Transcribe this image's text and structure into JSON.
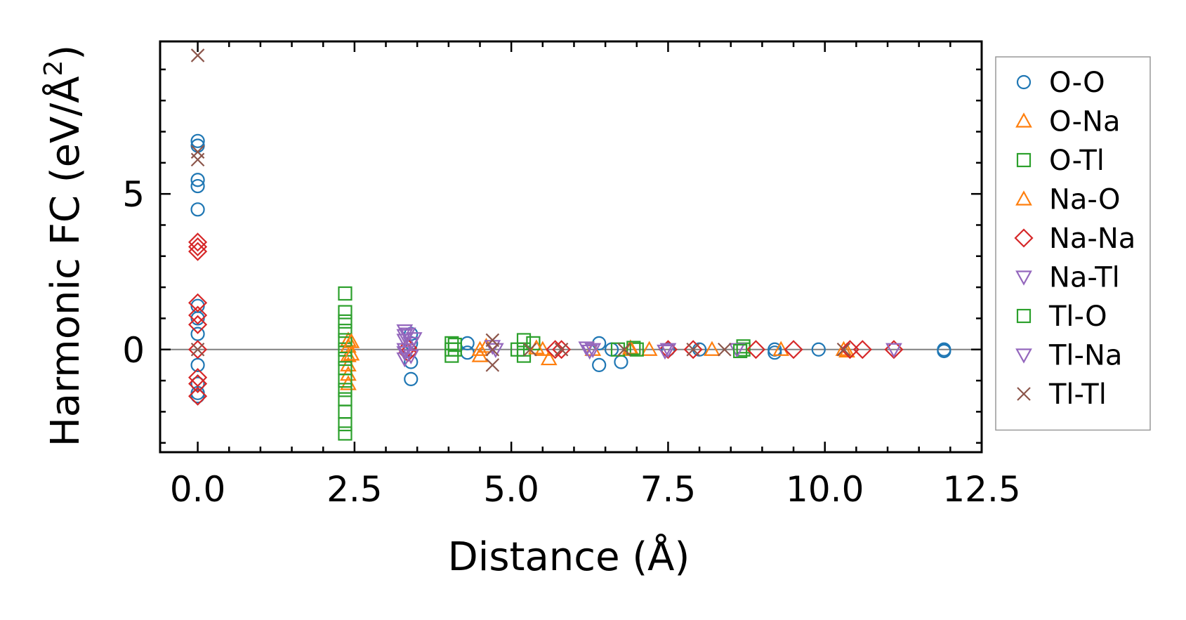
{
  "chart_data": {
    "type": "scatter",
    "xlabel": "Distance (Å)",
    "ylabel": "Harmonic FC (eV/Å",
    "ylabel_sup": "2",
    "ylabel_close": ")",
    "xlim": [
      -0.6,
      12.5
    ],
    "ylim": [
      -3.3,
      9.9
    ],
    "xticks": [
      0.0,
      2.5,
      5.0,
      7.5,
      10.0,
      12.5
    ],
    "xtick_labels": [
      "0.0",
      "2.5",
      "5.0",
      "7.5",
      "10.0",
      "12.5"
    ],
    "yticks": [
      0,
      5
    ],
    "ytick_labels": [
      "0",
      "5"
    ],
    "zero_line": true,
    "grid": false,
    "legend_position": "right",
    "series": [
      {
        "name": "O-O",
        "marker": "circle",
        "color": "#1f77b4",
        "points": [
          [
            0,
            6.7
          ],
          [
            0,
            6.55
          ],
          [
            0,
            5.45
          ],
          [
            0,
            5.25
          ],
          [
            0,
            4.5
          ],
          [
            0,
            1.4
          ],
          [
            0,
            1.0
          ],
          [
            0,
            0.5
          ],
          [
            0,
            -0.5
          ],
          [
            0,
            -1.1
          ],
          [
            0,
            -1.4
          ],
          [
            0,
            -1.5
          ],
          [
            3.4,
            0.5
          ],
          [
            3.4,
            0.2
          ],
          [
            3.4,
            -0.4
          ],
          [
            3.4,
            -0.95
          ],
          [
            4.3,
            0.2
          ],
          [
            4.3,
            -0.1
          ],
          [
            6.4,
            0.2
          ],
          [
            6.4,
            -0.5
          ],
          [
            6.6,
            0
          ],
          [
            6.75,
            -0.4
          ],
          [
            7.5,
            0
          ],
          [
            8.0,
            0
          ],
          [
            9.2,
            0
          ],
          [
            9.2,
            -0.1
          ],
          [
            9.9,
            0
          ],
          [
            11.9,
            0
          ],
          [
            11.9,
            -0.05
          ]
        ]
      },
      {
        "name": "O-Na",
        "marker": "triangle-up",
        "color": "#ff7f0e",
        "points": [
          [
            2.4,
            0.3
          ],
          [
            2.4,
            0.1
          ],
          [
            2.4,
            -0.2
          ],
          [
            2.4,
            -0.5
          ],
          [
            2.4,
            -0.8
          ],
          [
            2.4,
            -1.1
          ],
          [
            4.5,
            0
          ],
          [
            4.5,
            -0.2
          ],
          [
            5.5,
            0
          ],
          [
            5.6,
            -0.3
          ],
          [
            6.3,
            0
          ],
          [
            6.9,
            0
          ],
          [
            7.2,
            0
          ],
          [
            8.2,
            0
          ],
          [
            9.3,
            0
          ],
          [
            10.3,
            0
          ]
        ]
      },
      {
        "name": "O-Tl",
        "marker": "square",
        "color": "#2ca02c",
        "points": [
          [
            2.35,
            1.8
          ],
          [
            2.35,
            1.2
          ],
          [
            2.35,
            0.9
          ],
          [
            2.35,
            0.6
          ],
          [
            2.35,
            0.3
          ],
          [
            2.35,
            0
          ],
          [
            2.35,
            -0.3
          ],
          [
            2.35,
            -0.6
          ],
          [
            2.35,
            -1.0
          ],
          [
            2.35,
            -1.3
          ],
          [
            2.35,
            -1.6
          ],
          [
            2.35,
            -2.0
          ],
          [
            2.35,
            -2.4
          ],
          [
            2.35,
            -2.7
          ],
          [
            4.05,
            0.2
          ],
          [
            4.05,
            0
          ],
          [
            4.05,
            -0.2
          ],
          [
            5.2,
            0.3
          ],
          [
            5.2,
            0
          ],
          [
            5.2,
            -0.2
          ],
          [
            5.35,
            0.2
          ],
          [
            6.7,
            0
          ],
          [
            7.0,
            0
          ],
          [
            8.7,
            0.1
          ],
          [
            8.7,
            0
          ]
        ]
      },
      {
        "name": "Na-O",
        "marker": "triangle-up",
        "color": "#ff7f0e",
        "points": [
          [
            2.45,
            0.25
          ],
          [
            2.45,
            -0.15
          ],
          [
            4.6,
            0.1
          ],
          [
            5.4,
            0.05
          ],
          [
            6.9,
            0.05
          ],
          [
            10.35,
            -0.05
          ]
        ]
      },
      {
        "name": "Na-Na",
        "marker": "diamond",
        "color": "#d62728",
        "points": [
          [
            0,
            3.45
          ],
          [
            0,
            3.3
          ],
          [
            0,
            3.15
          ],
          [
            0,
            1.5
          ],
          [
            0,
            1.1
          ],
          [
            0,
            0.8
          ],
          [
            0,
            0
          ],
          [
            0,
            -0.9
          ],
          [
            0,
            -1.1
          ],
          [
            0,
            -1.5
          ],
          [
            3.35,
            0.05
          ],
          [
            3.35,
            -0.1
          ],
          [
            5.7,
            0
          ],
          [
            5.8,
            0
          ],
          [
            7.5,
            0
          ],
          [
            7.9,
            0
          ],
          [
            8.9,
            0
          ],
          [
            9.5,
            0
          ],
          [
            10.4,
            0
          ],
          [
            10.6,
            0
          ],
          [
            11.1,
            0
          ]
        ]
      },
      {
        "name": "Na-Tl",
        "marker": "triangle-down",
        "color": "#9467bd",
        "points": [
          [
            3.3,
            0.6
          ],
          [
            3.3,
            0.3
          ],
          [
            3.3,
            0
          ],
          [
            3.3,
            -0.3
          ],
          [
            3.35,
            0.5
          ],
          [
            3.4,
            0.2
          ],
          [
            3.4,
            -0.2
          ],
          [
            4.7,
            0.1
          ],
          [
            6.2,
            0.05
          ],
          [
            6.3,
            0
          ],
          [
            7.5,
            0
          ],
          [
            8.6,
            0
          ],
          [
            11.1,
            0
          ]
        ]
      },
      {
        "name": "Tl-O",
        "marker": "square",
        "color": "#2ca02c",
        "points": [
          [
            4.1,
            0
          ],
          [
            4.1,
            0.15
          ],
          [
            5.1,
            0
          ],
          [
            6.95,
            0.05
          ],
          [
            8.65,
            -0.05
          ]
        ]
      },
      {
        "name": "Tl-Na",
        "marker": "triangle-down",
        "color": "#9467bd",
        "points": [
          [
            3.3,
            0.45
          ],
          [
            3.3,
            -0.1
          ],
          [
            3.45,
            0.35
          ],
          [
            4.75,
            0
          ],
          [
            6.25,
            -0.05
          ],
          [
            7.45,
            -0.05
          ]
        ]
      },
      {
        "name": "Tl-Tl",
        "marker": "x",
        "color": "#8c564b",
        "points": [
          [
            0,
            9.45
          ],
          [
            0,
            6.35
          ],
          [
            0,
            6.1
          ],
          [
            0,
            0
          ],
          [
            4.7,
            0.3
          ],
          [
            4.7,
            0
          ],
          [
            4.7,
            -0.5
          ],
          [
            5.3,
            0
          ],
          [
            5.8,
            0
          ],
          [
            6.8,
            0
          ],
          [
            7.9,
            0
          ],
          [
            8.4,
            0
          ],
          [
            10.3,
            0
          ]
        ]
      }
    ]
  }
}
